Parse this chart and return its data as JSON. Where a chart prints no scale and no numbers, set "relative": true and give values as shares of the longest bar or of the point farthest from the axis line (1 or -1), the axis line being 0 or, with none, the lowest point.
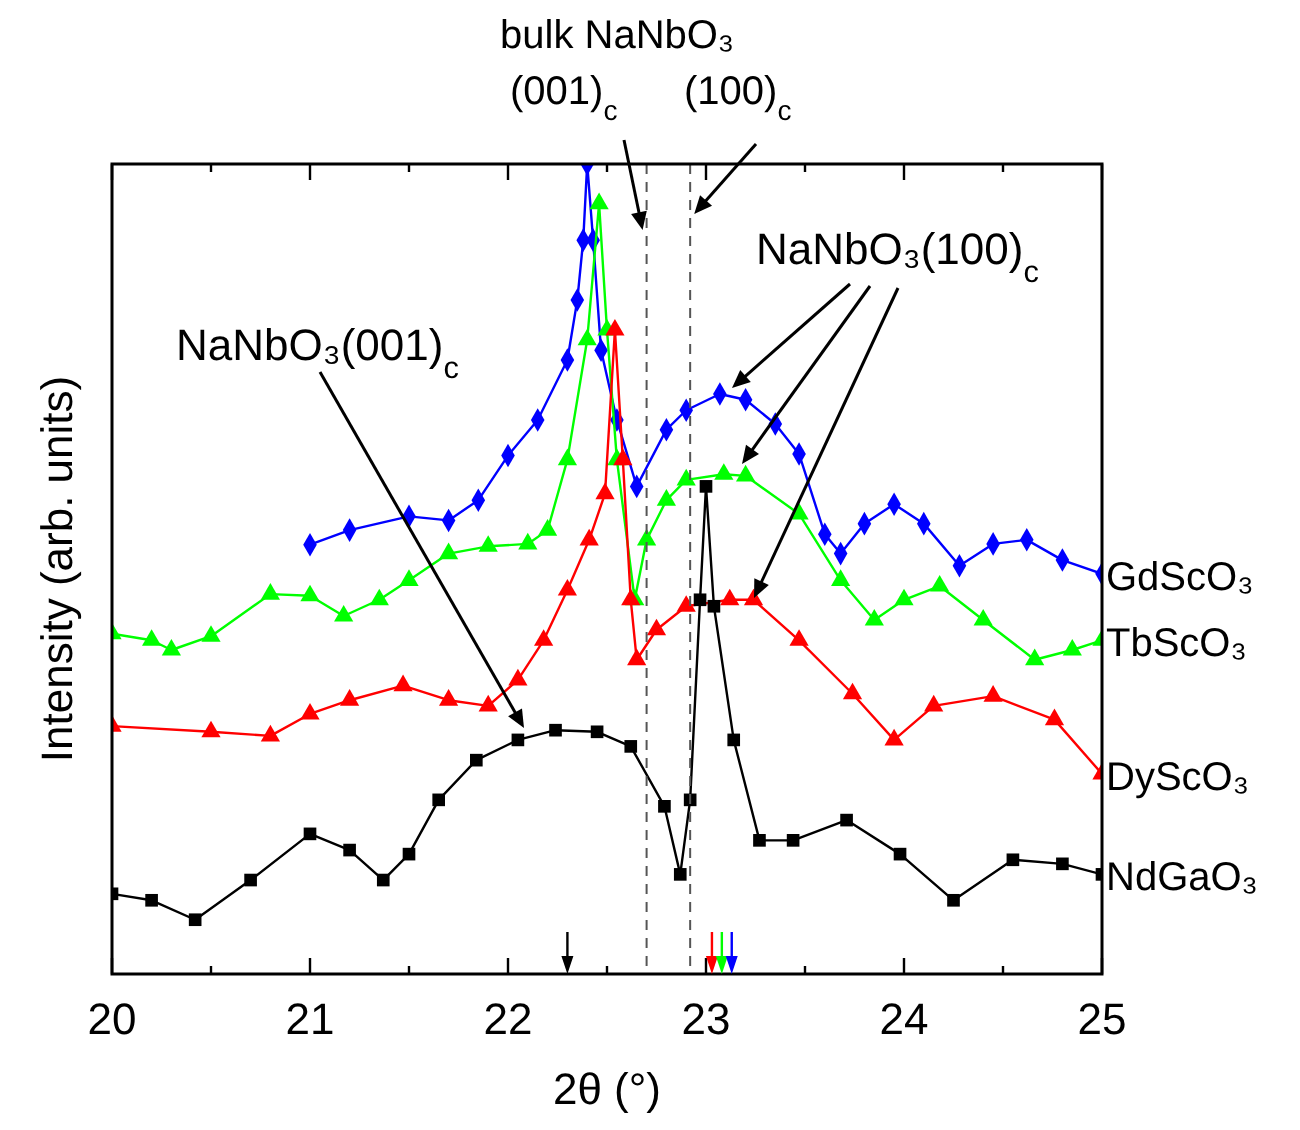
{
  "chart_data": {
    "type": "line",
    "relative": true,
    "xlabel": "2θ (°)",
    "ylabel": "Intensity (arb. units)",
    "xlim": [
      20,
      25
    ],
    "xticks": [
      20,
      {
        "value": 20.5,
        "label": null
      },
      21,
      {
        "value": 21.5,
        "label": null
      },
      22,
      {
        "value": 22.5,
        "label": null
      },
      23,
      {
        "value": 23.5,
        "label": null
      },
      24,
      {
        "value": 24.5,
        "label": null
      },
      25
    ],
    "series": [
      {
        "name": "GdScO₃",
        "color": "#0000ff",
        "marker": "diamond",
        "x": [
          21.0,
          21.2,
          21.5,
          21.7,
          21.85,
          22.0,
          22.15,
          22.3,
          22.35,
          22.38,
          22.4,
          22.43,
          22.47,
          22.55,
          22.65,
          22.8,
          22.9,
          23.07,
          23.2,
          23.35,
          23.47,
          23.6,
          23.68,
          23.8,
          23.95,
          24.1,
          24.28,
          24.45,
          24.62,
          24.8,
          25.0
        ],
        "values": [
          0.53,
          0.548,
          0.565,
          0.56,
          0.585,
          0.64,
          0.684,
          0.758,
          0.832,
          0.906,
          1,
          0.906,
          0.77,
          0.684,
          0.602,
          0.672,
          0.696,
          0.716,
          0.709,
          0.679,
          0.642,
          0.543,
          0.519,
          0.556,
          0.58,
          0.556,
          0.504,
          0.531,
          0.536,
          0.511,
          0.494
        ]
      },
      {
        "name": "TbScO₃",
        "color": "#00ff00",
        "marker": "triangle",
        "x": [
          20.0,
          20.2,
          20.3,
          20.5,
          20.8,
          21.0,
          21.17,
          21.35,
          21.5,
          21.7,
          21.9,
          22.1,
          22.2,
          22.3,
          22.4,
          22.46,
          22.5,
          22.55,
          22.64,
          22.7,
          22.8,
          22.9,
          23.09,
          23.2,
          23.47,
          23.68,
          23.85,
          24.0,
          24.18,
          24.4,
          24.66,
          24.85,
          25.0
        ],
        "values": [
          0.42,
          0.412,
          0.4,
          0.417,
          0.469,
          0.467,
          0.442,
          0.462,
          0.486,
          0.519,
          0.528,
          0.531,
          0.548,
          0.635,
          0.783,
          0.951,
          0.795,
          0.635,
          0.462,
          0.536,
          0.585,
          0.61,
          0.617,
          0.615,
          0.568,
          0.486,
          0.437,
          0.462,
          0.479,
          0.437,
          0.388,
          0.4,
          0.412
        ]
      },
      {
        "name": "DyScO₃",
        "color": "#ff0000",
        "marker": "triangle",
        "x": [
          20.0,
          20.5,
          20.8,
          21.0,
          21.2,
          21.47,
          21.7,
          21.9,
          22.05,
          22.18,
          22.3,
          22.41,
          22.49,
          22.54,
          22.58,
          22.62,
          22.65,
          22.75,
          22.9,
          23.12,
          23.24,
          23.47,
          23.74,
          23.95,
          24.15,
          24.45,
          24.76,
          25.0
        ],
        "values": [
          0.306,
          0.299,
          0.294,
          0.321,
          0.338,
          0.356,
          0.338,
          0.331,
          0.363,
          0.412,
          0.474,
          0.536,
          0.593,
          0.795,
          0.635,
          0.462,
          0.388,
          0.425,
          0.454,
          0.462,
          0.462,
          0.412,
          0.346,
          0.289,
          0.331,
          0.343,
          0.314,
          0.247
        ]
      },
      {
        "name": "NdGaO₃",
        "color": "#000000",
        "marker": "square",
        "x": [
          20.0,
          20.2,
          20.42,
          20.7,
          21.0,
          21.2,
          21.37,
          21.5,
          21.65,
          21.84,
          22.05,
          22.24,
          22.45,
          22.62,
          22.79,
          22.87,
          22.92,
          22.97,
          23.0,
          23.04,
          23.14,
          23.27,
          23.44,
          23.71,
          23.98,
          24.25,
          24.55,
          24.8,
          25.0
        ],
        "values": [
          0.099,
          0.091,
          0.067,
          0.116,
          0.173,
          0.153,
          0.116,
          0.148,
          0.215,
          0.264,
          0.289,
          0.301,
          0.299,
          0.281,
          0.207,
          0.123,
          0.215,
          0.462,
          0.602,
          0.454,
          0.289,
          0.165,
          0.165,
          0.19,
          0.148,
          0.091,
          0.141,
          0.136,
          0.123
        ]
      }
    ],
    "ref_lines": [
      {
        "axis": "x",
        "value": 22.7,
        "label": "(001)$_{c}$",
        "line_style": "dashed",
        "color": "#555555"
      },
      {
        "axis": "x",
        "value": 22.92,
        "label": "(100)$_{c}$",
        "line_style": "dashed",
        "color": "#555555"
      }
    ],
    "annotations": [
      "bulk NaNbO₃",
      "NaNbO₃(100)$_{c}$",
      "NaNbO₃(001)$_{c}$"
    ]
  }
}
